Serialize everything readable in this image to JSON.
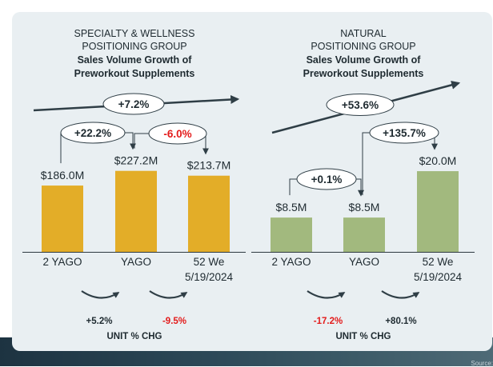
{
  "footer": {
    "source": "Source:"
  },
  "colors": {
    "panel_bg": "#e9eff2",
    "left_bar": "#e3ad28",
    "right_bar": "#a2b97e",
    "arrow": "#2f3e46",
    "negative": "#e31b1b",
    "text": "#1e2a30"
  },
  "chart_data": [
    {
      "type": "bar",
      "title": "SPECIALTY & WELLNESS POSITIONING  GROUP",
      "title_lines": [
        "SPECIALTY  & WELLNESS",
        "POSITIONING  GROUP"
      ],
      "subtitle": "Sales Volume Growth of Preworkout Supplements",
      "subtitle_lines": [
        "Sales Volume Growth of",
        "Preworkout Supplements"
      ],
      "categories": [
        "2 YAGO",
        "YAGO",
        "52 We 5/19/2024"
      ],
      "category_lines": [
        [
          "2 YAGO"
        ],
        [
          "YAGO"
        ],
        [
          "52 We",
          "5/19/2024"
        ]
      ],
      "values": [
        186.0,
        227.2,
        213.7
      ],
      "value_labels": [
        "$186.0M",
        "$227.2M",
        "$213.7M"
      ],
      "unit": "$M",
      "ylim": [
        0,
        240
      ],
      "total_change": "+7.2%",
      "period_changes": [
        "+22.2%",
        "-6.0%"
      ],
      "unit_changes": [
        "+5.2%",
        "-9.5%"
      ],
      "unit_change_label": "UNIT % CHG",
      "bar_color": "#e3ad28"
    },
    {
      "type": "bar",
      "title": "NATURAL POSITIONING  GROUP",
      "title_lines": [
        "NATURAL",
        "POSITIONING  GROUP"
      ],
      "subtitle": "Sales Volume Growth of Preworkout Supplements",
      "subtitle_lines": [
        "Sales Volume Growth of",
        "Preworkout Supplements"
      ],
      "categories": [
        "2 YAGO",
        "YAGO",
        "52 We 5/19/2024"
      ],
      "category_lines": [
        [
          "2 YAGO"
        ],
        [
          "YAGO"
        ],
        [
          "52 We",
          "5/19/2024"
        ]
      ],
      "values": [
        8.5,
        8.5,
        20.0
      ],
      "value_labels": [
        "$8.5M",
        "$8.5M",
        "$20.0M"
      ],
      "unit": "$M",
      "ylim": [
        0,
        21.2
      ],
      "total_change": "+53.6%",
      "period_changes": [
        "+0.1%",
        "+135.7%"
      ],
      "unit_changes": [
        "-17.2%",
        "+80.1%"
      ],
      "unit_change_label": "UNIT % CHG",
      "bar_color": "#a2b97e"
    }
  ]
}
